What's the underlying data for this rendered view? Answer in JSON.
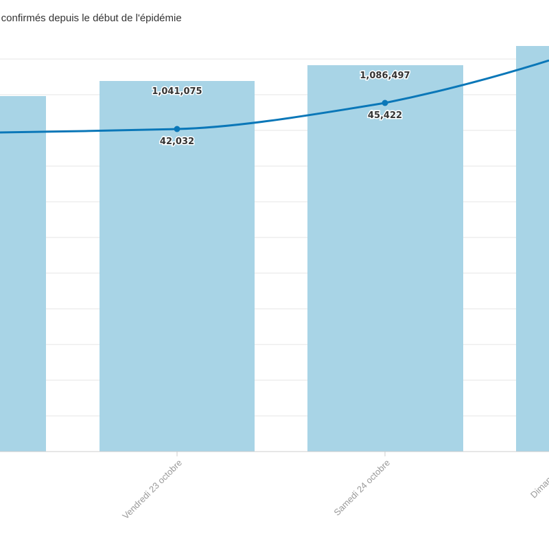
{
  "title": "s confirmés depuis le début de l'épidémie",
  "chart_data": {
    "type": "bar",
    "categories": [
      "",
      "Vendredi 23 octobre",
      "Samedi 24 octobre",
      "Diman"
    ],
    "series": [
      {
        "type": "bar",
        "values": [
          null,
          1041075,
          1086497,
          null
        ]
      },
      {
        "type": "line",
        "values": [
          null,
          42032,
          45422,
          null
        ]
      }
    ],
    "bar_labels": [
      "",
      "1,041,075",
      "1,086,497",
      ""
    ],
    "line_labels": [
      "",
      "42,032",
      "45,422",
      ""
    ],
    "colors": {
      "bar": "#a8d4e6",
      "line": "#0a77b8",
      "grid": "#e6e6e6"
    },
    "grid": true
  }
}
